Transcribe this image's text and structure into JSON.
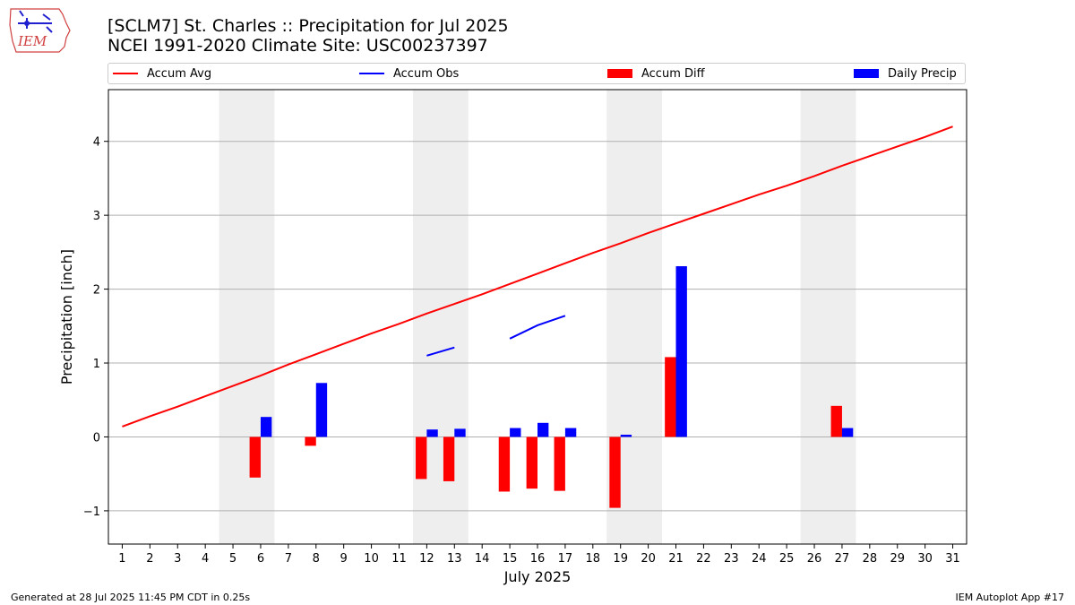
{
  "logo": {
    "text": "IEM"
  },
  "title_line1": "[SCLM7] St. Charles :: Precipitation for Jul 2025",
  "title_line2": "NCEI 1991-2020 Climate Site: USC00237397",
  "footer_left": "Generated at 28 Jul 2025 11:45 PM CDT in 0.25s",
  "footer_right": "IEM Autoplot App #17",
  "colors": {
    "avg": "#ff0000",
    "obs": "#0000ff",
    "diff": "#ff0000",
    "daily": "#0000ff",
    "weekend": "#eeeeee",
    "grid": "#b0b0b0"
  },
  "chart_data": {
    "type": "bar",
    "xlabel": "July 2025",
    "ylabel": "Precipitation [inch]",
    "xlim": [
      0.5,
      31.5
    ],
    "ylim": [
      -1.45,
      4.7
    ],
    "grid": true,
    "legend_position": "top",
    "x_ticks": [
      1,
      2,
      3,
      4,
      5,
      6,
      7,
      8,
      9,
      10,
      11,
      12,
      13,
      14,
      15,
      16,
      17,
      18,
      19,
      20,
      21,
      22,
      23,
      24,
      25,
      26,
      27,
      28,
      29,
      30,
      31
    ],
    "y_ticks": [
      -1,
      0,
      1,
      2,
      3,
      4
    ],
    "y_tick_labels": [
      "−1",
      "0",
      "1",
      "2",
      "3",
      "4"
    ],
    "weekend_bands": [
      [
        5,
        6
      ],
      [
        12,
        13
      ],
      [
        19,
        20
      ],
      [
        26,
        27
      ]
    ],
    "series": [
      {
        "name": "Accum Avg",
        "type": "line",
        "x": [
          1,
          2,
          3,
          4,
          5,
          6,
          7,
          8,
          9,
          10,
          11,
          12,
          13,
          14,
          15,
          16,
          17,
          18,
          19,
          20,
          21,
          22,
          23,
          24,
          25,
          26,
          27,
          28,
          29,
          30,
          31
        ],
        "y": [
          0.14,
          0.28,
          0.41,
          0.55,
          0.69,
          0.83,
          0.98,
          1.12,
          1.26,
          1.4,
          1.53,
          1.67,
          1.8,
          1.93,
          2.07,
          2.21,
          2.35,
          2.49,
          2.62,
          2.76,
          2.89,
          3.02,
          3.15,
          3.28,
          3.4,
          3.53,
          3.67,
          3.8,
          3.93,
          4.06,
          4.2
        ]
      },
      {
        "name": "Accum Obs",
        "type": "line",
        "segments": [
          {
            "x": [
              12,
              13
            ],
            "y": [
              1.1,
              1.21
            ]
          },
          {
            "x": [
              15,
              16,
              17
            ],
            "y": [
              1.33,
              1.51,
              1.64
            ]
          }
        ]
      },
      {
        "name": "Accum Diff",
        "type": "bar",
        "x": [
          6,
          8,
          12,
          13,
          15,
          16,
          17,
          19,
          21,
          27
        ],
        "y": [
          -0.55,
          -0.12,
          -0.57,
          -0.6,
          -0.74,
          -0.7,
          -0.73,
          -0.96,
          1.08,
          0.42
        ]
      },
      {
        "name": "Daily Precip",
        "type": "bar",
        "x": [
          6,
          8,
          12,
          13,
          15,
          16,
          17,
          19,
          21,
          27
        ],
        "y": [
          0.27,
          0.73,
          0.1,
          0.11,
          0.12,
          0.19,
          0.12,
          0.03,
          2.31,
          0.12
        ]
      }
    ]
  }
}
